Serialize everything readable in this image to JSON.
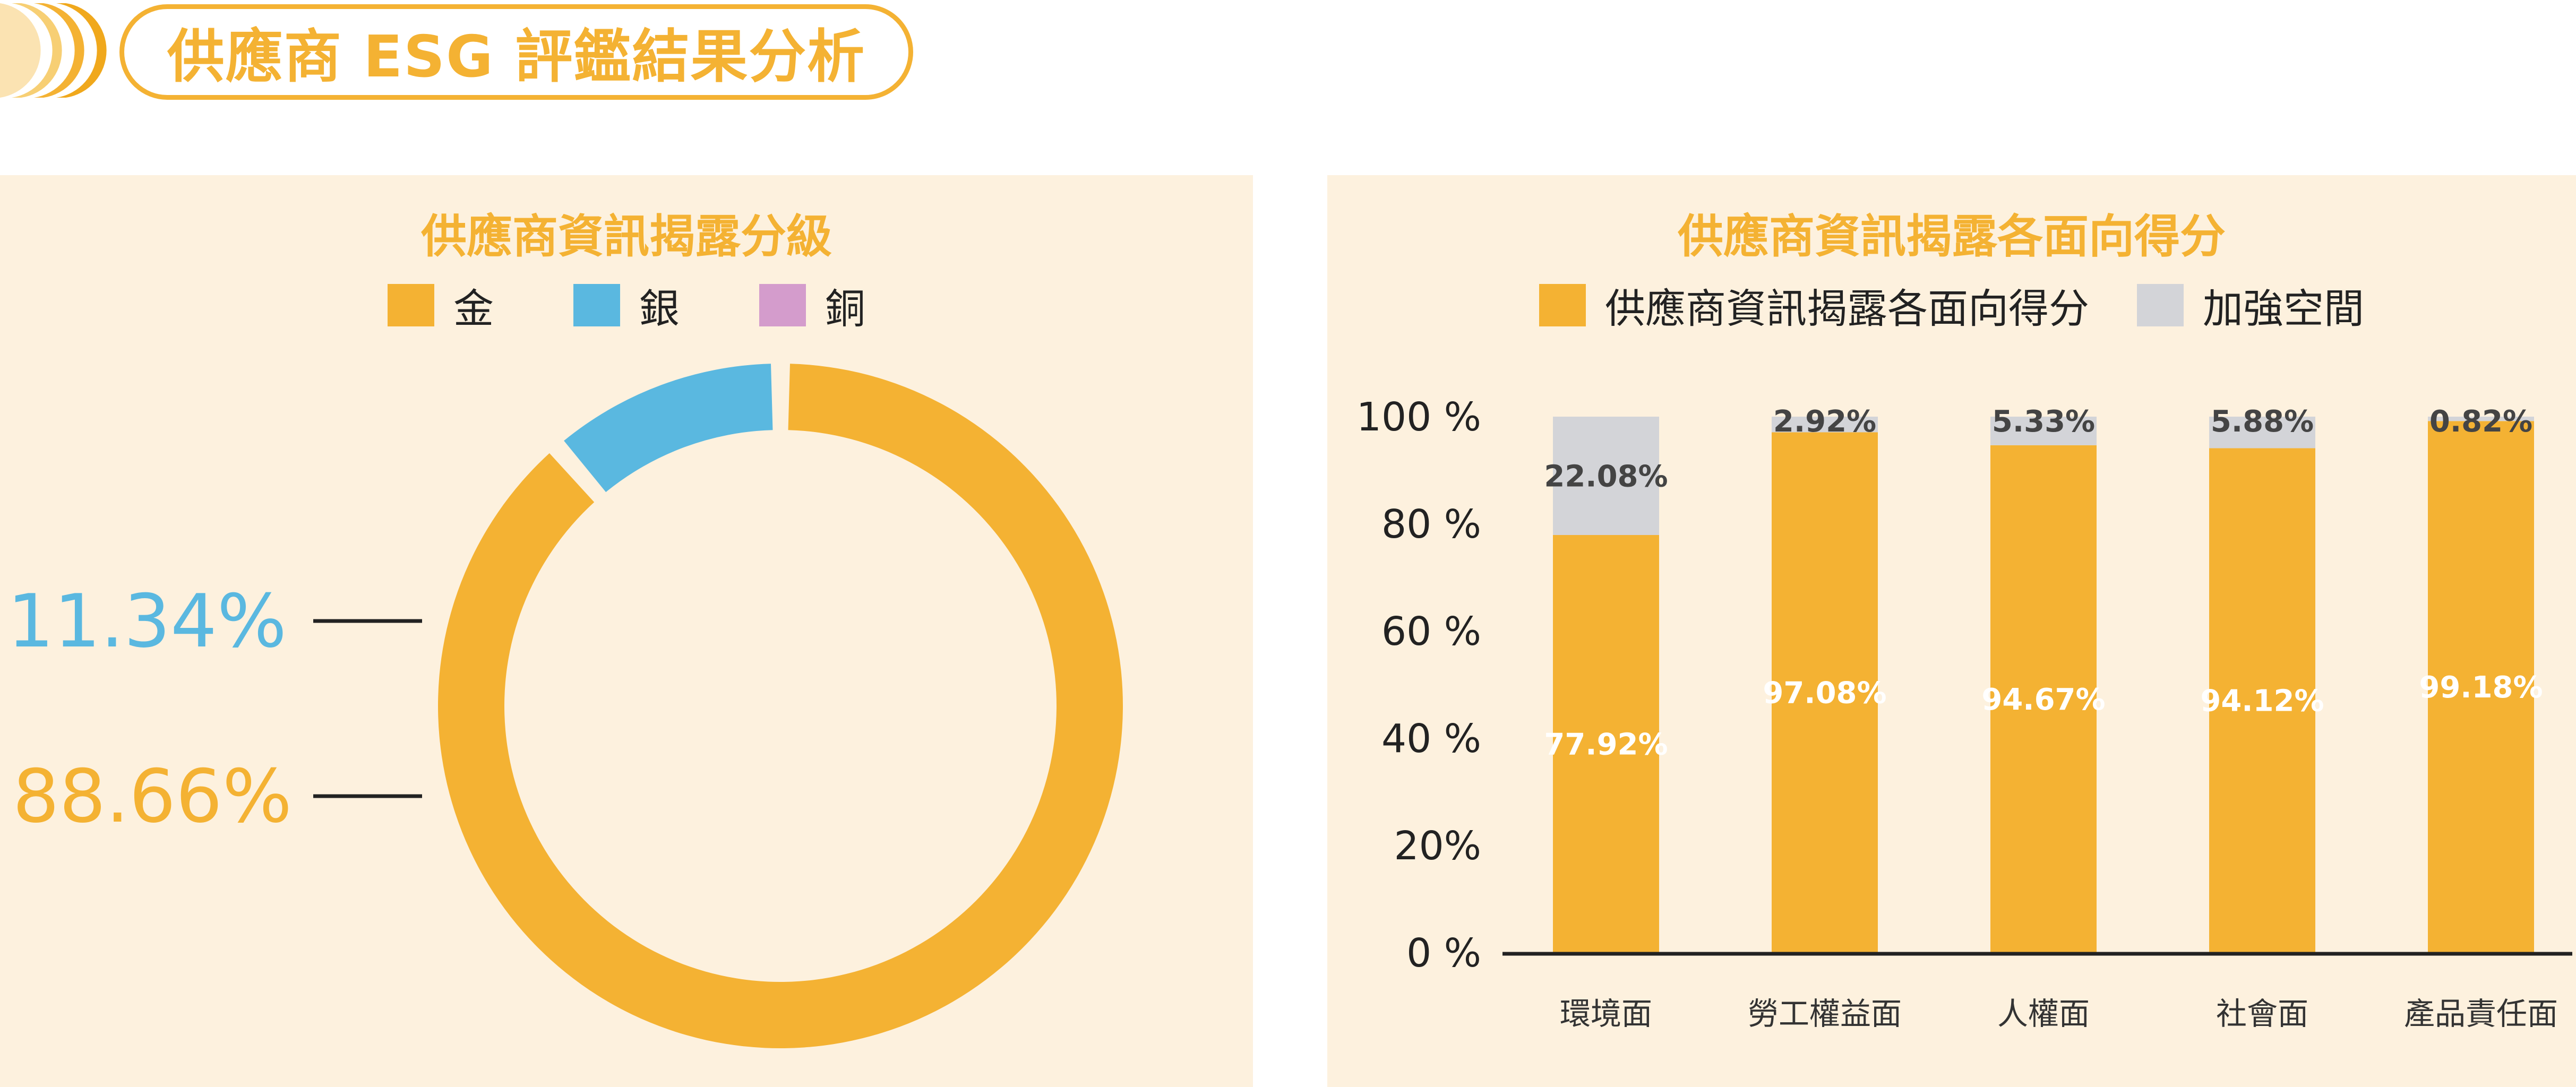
{
  "header": {
    "title": "供應商 ESG 評鑑結果分析"
  },
  "colors": {
    "gold": "#f4b233",
    "silver": "#5ab8e0",
    "bronze": "#d49ccc",
    "improve": "#d3d4d8",
    "panel_bg": "#fdf1de"
  },
  "left": {
    "title": "供應商資訊揭露分級",
    "legend": [
      {
        "label": "金",
        "color": "#f4b233"
      },
      {
        "label": "銀",
        "color": "#5ab8e0"
      },
      {
        "label": "銅",
        "color": "#d49ccc"
      }
    ]
  },
  "right": {
    "title": "供應商資訊揭露各面向得分",
    "legend": [
      {
        "label": "供應商資訊揭露各面向得分",
        "color": "#f4b233"
      },
      {
        "label": "加強空間",
        "color": "#d3d4d8"
      }
    ]
  },
  "chart_data": [
    {
      "type": "pie",
      "title": "供應商資訊揭露分級",
      "donut": true,
      "slices": [
        {
          "name": "金",
          "value": 88.66,
          "label": "88.66%",
          "color": "#f4b233"
        },
        {
          "name": "銀",
          "value": 11.34,
          "label": "11.34%",
          "color": "#5ab8e0"
        },
        {
          "name": "銅",
          "value": 0,
          "label": "",
          "color": "#d49ccc"
        }
      ],
      "legend": "top"
    },
    {
      "type": "bar",
      "stacked": true,
      "title": "供應商資訊揭露各面向得分",
      "categories": [
        "環境面",
        "勞工權益面",
        "人權面",
        "社會面",
        "產品責任面"
      ],
      "series": [
        {
          "name": "供應商資訊揭露各面向得分",
          "color": "#f4b233",
          "values": [
            77.92,
            97.08,
            94.67,
            94.12,
            99.18
          ],
          "labels": [
            "77.92%",
            "97.08%",
            "94.67%",
            "94.12%",
            "99.18%"
          ]
        },
        {
          "name": "加強空間",
          "color": "#d3d4d8",
          "values": [
            22.08,
            2.92,
            5.33,
            5.88,
            0.82
          ],
          "labels": [
            "22.08%",
            "2.92%",
            "5.33%",
            "5.88%",
            "0.82%"
          ]
        }
      ],
      "ylim": [
        0,
        100
      ],
      "yticks": [
        "0 %",
        "20%",
        "40 %",
        "60 %",
        "80 %",
        "100 %"
      ],
      "legend": "top",
      "grid": false
    }
  ]
}
